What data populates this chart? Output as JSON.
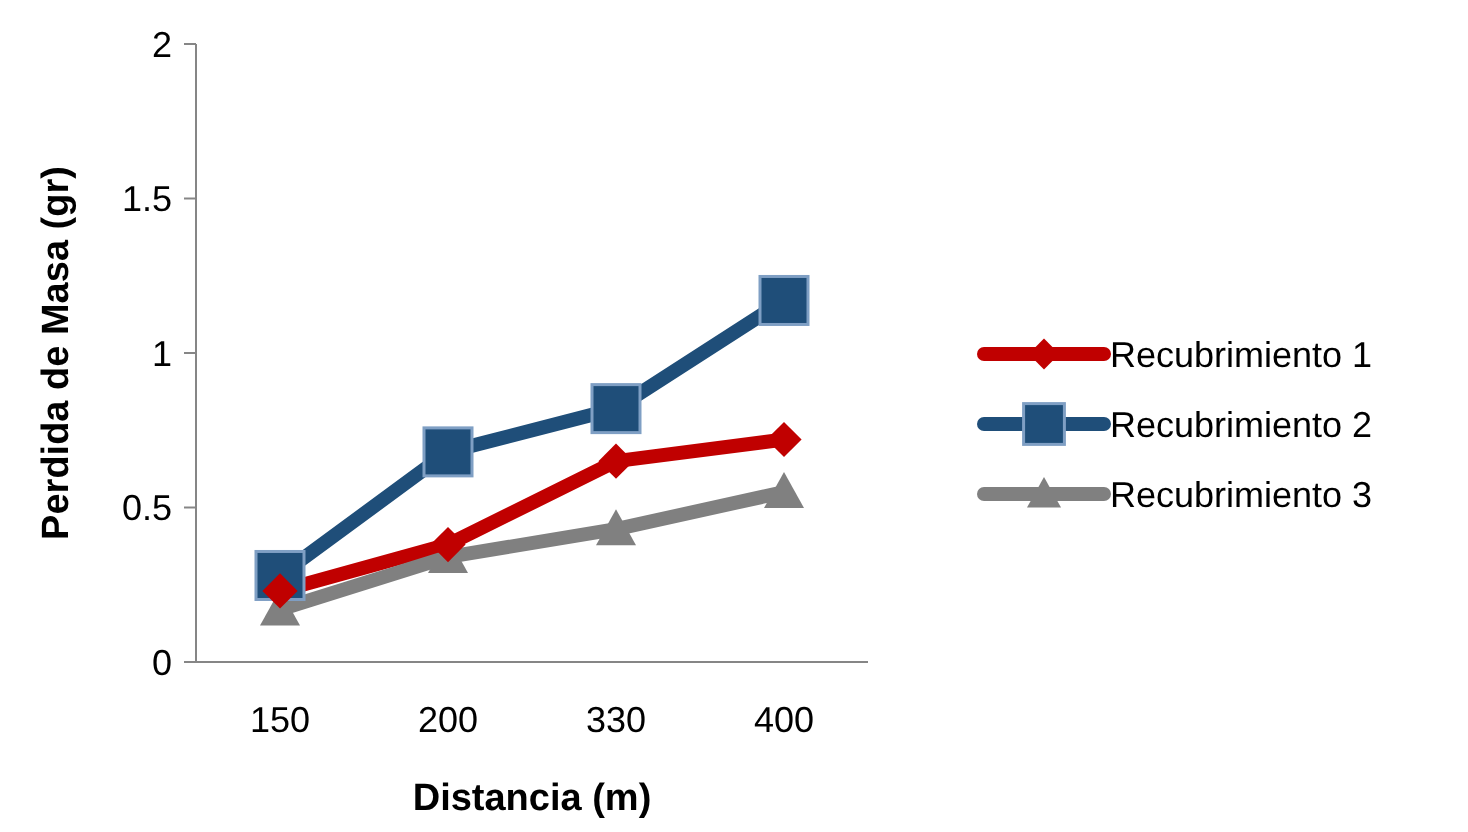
{
  "chart_data": {
    "type": "line",
    "xlabel": "Distancia (m)",
    "ylabel": "Perdida de Masa (gr)",
    "categories": [
      "150",
      "200",
      "330",
      "400"
    ],
    "ylim": [
      0,
      2
    ],
    "yticks": [
      0,
      0.5,
      1,
      1.5,
      2
    ],
    "grid": false,
    "legend": "right",
    "line_style": "solid",
    "series": [
      {
        "name": "Recubrimiento 1",
        "color": "#c00000",
        "marker": "diamond",
        "values": [
          0.23,
          0.38,
          0.65,
          0.72
        ]
      },
      {
        "name": "Recubrimiento 2",
        "color": "#1f4e79",
        "marker": "square",
        "values": [
          0.28,
          0.68,
          0.82,
          1.17
        ]
      },
      {
        "name": "Recubrimiento 3",
        "color": "#808080",
        "marker": "triangle",
        "values": [
          0.17,
          0.34,
          0.43,
          0.55
        ]
      }
    ]
  }
}
